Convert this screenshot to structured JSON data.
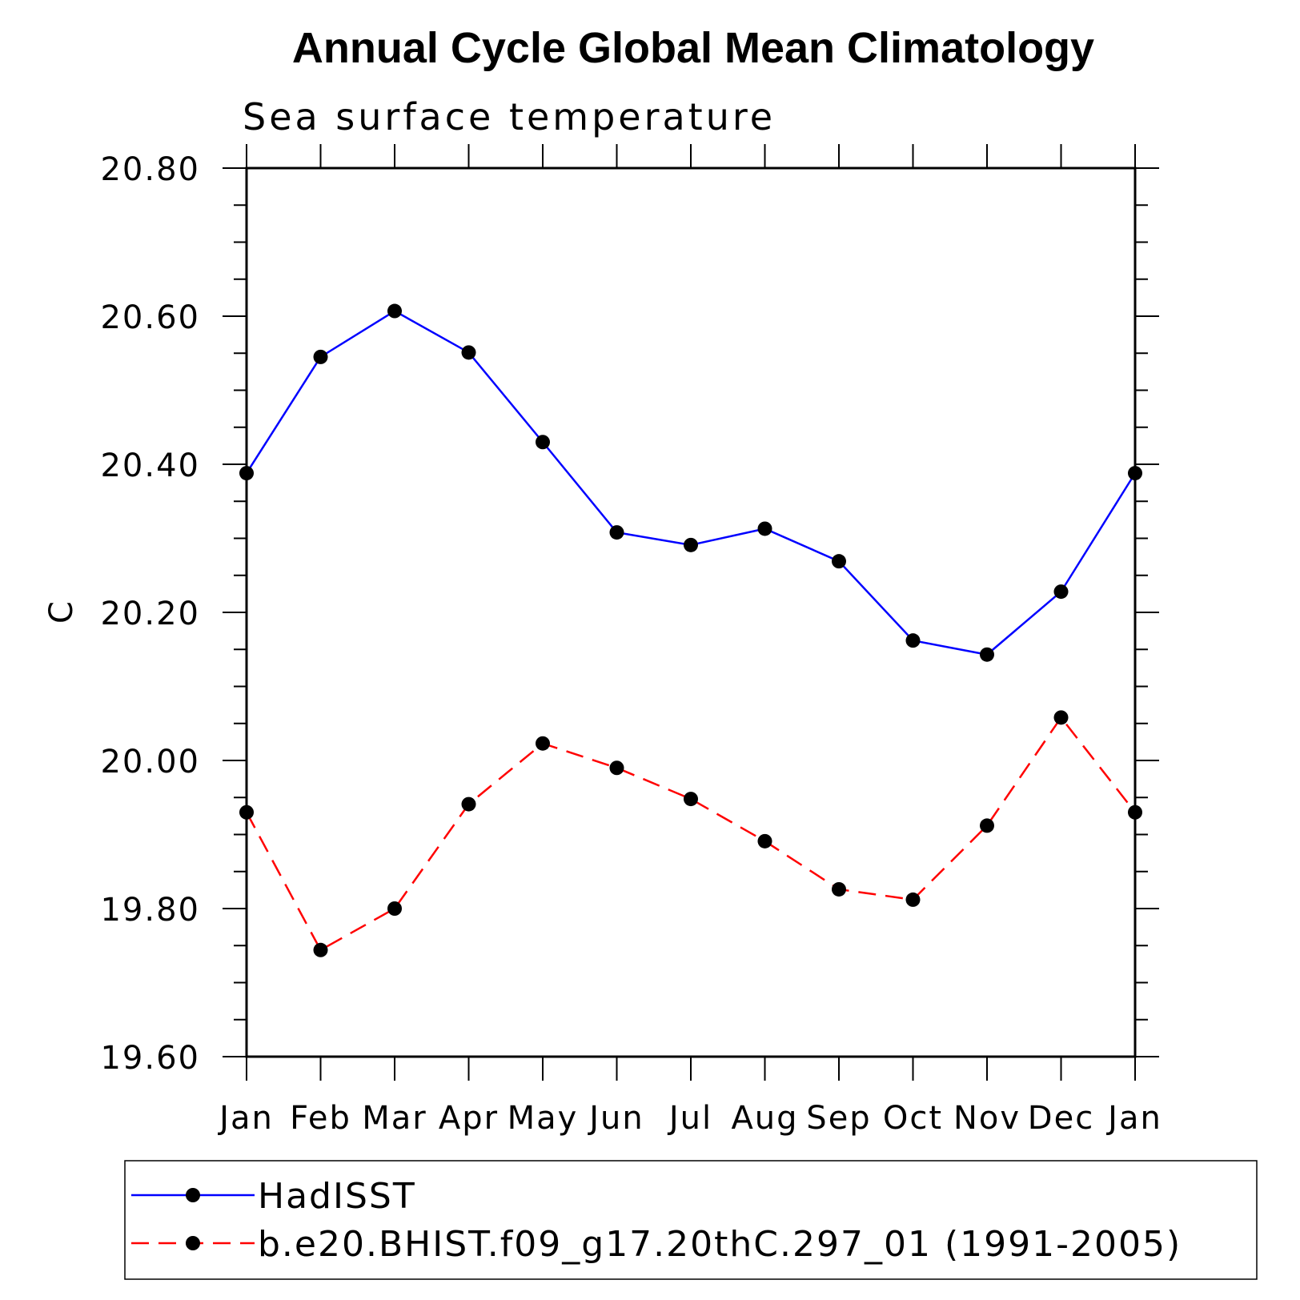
{
  "chart_data": {
    "type": "line",
    "title": "Annual Cycle Global Mean Climatology",
    "subtitle": "Sea surface temperature",
    "xlabel": "",
    "ylabel": "C",
    "categories": [
      "Jan",
      "Feb",
      "Mar",
      "Apr",
      "May",
      "Jun",
      "Jul",
      "Aug",
      "Sep",
      "Oct",
      "Nov",
      "Dec",
      "Jan"
    ],
    "ylim": [
      19.6,
      20.8
    ],
    "yticks": [
      "20.80",
      "20.60",
      "20.40",
      "20.20",
      "20.00",
      "19.80",
      "19.60"
    ],
    "series": [
      {
        "name": "HadISST",
        "color": "#0000ff",
        "dash": "solid",
        "values": [
          20.388,
          20.545,
          20.607,
          20.551,
          20.43,
          20.308,
          20.291,
          20.313,
          20.269,
          20.162,
          20.143,
          20.228,
          20.388
        ]
      },
      {
        "name": "b.e20.BHIST.f09_g17.20thC.297_01 (1991-2005)",
        "color": "#ff0000",
        "dash": "dashed",
        "values": [
          19.93,
          19.744,
          19.8,
          19.941,
          20.023,
          19.99,
          19.948,
          19.891,
          19.826,
          19.812,
          19.912,
          20.058,
          19.93
        ]
      }
    ],
    "legend_position": "bottom"
  }
}
